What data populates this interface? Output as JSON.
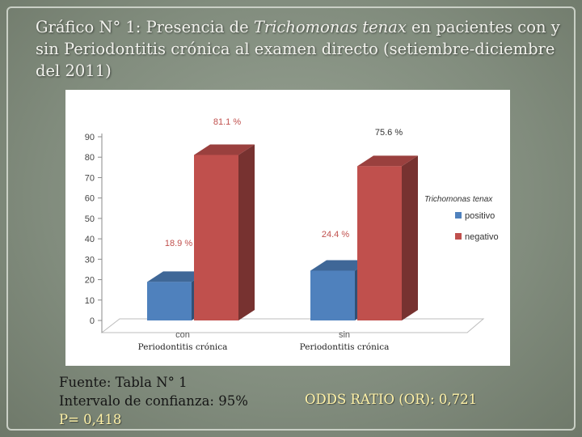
{
  "slide": {
    "title_prefix": "Gráfico N° 1: Presencia de ",
    "title_italic": "Trichomonas tenax",
    "title_suffix": " en pacientes con y sin Periodontitis crónica al examen directo (setiembre-diciembre del 2011)"
  },
  "footer": {
    "source": "Fuente: Tabla N° 1",
    "confidence": "Intervalo de confianza: 95%",
    "p_value": "P= 0,418",
    "odds_ratio": "ODDS RATIO (OR): 0,721"
  },
  "chart_data": {
    "type": "bar",
    "categories": [
      "con",
      "sin"
    ],
    "category_sublabels": [
      "Periodontitis crónica",
      "Periodontitis crónica"
    ],
    "series": [
      {
        "name": "positivo",
        "values": [
          18.9,
          24.4
        ],
        "labels": [
          "18.9 %",
          "24.4 %"
        ],
        "color": "#4f81bd"
      },
      {
        "name": "negativo",
        "values": [
          81.1,
          75.6
        ],
        "labels": [
          "81.1 %",
          "75.6 %"
        ],
        "color": "#c0504d"
      }
    ],
    "legend_title": "Trichomonas tenax",
    "legend_position": "right",
    "ylim": [
      0,
      90
    ],
    "yticks": [
      0,
      10,
      20,
      30,
      40,
      50,
      60,
      70,
      80,
      90
    ],
    "grid": false,
    "style": "3d",
    "label_color": "#c0504d"
  }
}
